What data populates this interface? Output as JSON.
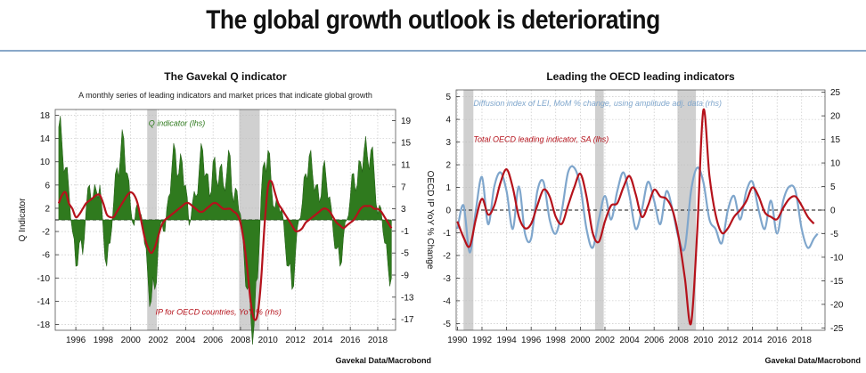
{
  "main_title": "The global growth outlook is deteriorating",
  "colors": {
    "green": "#2f7a1e",
    "red": "#b5121b",
    "blue": "#7fa6cc",
    "recession": "#d0d0d0"
  },
  "chart_data": [
    {
      "type": "area",
      "title": "The Gavekal Q indicator",
      "subtitle": "A monthly series of leading indicators and market prices that indicate global growth",
      "ylabel_left": "Q Indicator",
      "ylabel_right": "OECD IP YoY % Change",
      "source": "Gavekal Data/Macrobond",
      "xlim": [
        1994.5,
        2019.3
      ],
      "ylim_left": [
        -19,
        19
      ],
      "ylim_right": [
        -19,
        21
      ],
      "x_ticks": [
        1996,
        1998,
        2000,
        2002,
        2004,
        2006,
        2008,
        2010,
        2012,
        2014,
        2016,
        2018
      ],
      "y_ticks_left": [
        18,
        14,
        10,
        6,
        2,
        -2,
        -6,
        -10,
        -14,
        -18
      ],
      "y_ticks_right": [
        19,
        15,
        11,
        7,
        3,
        -1,
        -5,
        -9,
        -13,
        -17
      ],
      "recession_bands": [
        [
          2001.2,
          2001.9
        ],
        [
          2007.9,
          2009.4
        ]
      ],
      "annotations": [
        "Q indicator (lhs)",
        "IP for OECD countries, YoY % (rhs)"
      ],
      "series": [
        {
          "name": "Q indicator (lhs)",
          "axis": "left",
          "x": [
            1994.75,
            1995.0,
            1995.25,
            1995.5,
            1995.75,
            1996.0,
            1996.25,
            1996.5,
            1996.75,
            1997.0,
            1997.25,
            1997.5,
            1997.75,
            1998.0,
            1998.25,
            1998.5,
            1998.75,
            1999.0,
            1999.25,
            1999.5,
            1999.75,
            2000.0,
            2000.25,
            2000.5,
            2000.75,
            2001.0,
            2001.25,
            2001.5,
            2001.75,
            2002.0,
            2002.25,
            2002.5,
            2002.75,
            2003.0,
            2003.25,
            2003.5,
            2003.75,
            2004.0,
            2004.25,
            2004.5,
            2004.75,
            2005.0,
            2005.25,
            2005.5,
            2005.75,
            2006.0,
            2006.25,
            2006.5,
            2006.75,
            2007.0,
            2007.25,
            2007.5,
            2007.75,
            2008.0,
            2008.25,
            2008.5,
            2008.75,
            2009.0,
            2009.25,
            2009.5,
            2009.75,
            2010.0,
            2010.25,
            2010.5,
            2010.75,
            2011.0,
            2011.25,
            2011.5,
            2011.75,
            2012.0,
            2012.25,
            2012.5,
            2012.75,
            2013.0,
            2013.25,
            2013.5,
            2013.75,
            2014.0,
            2014.25,
            2014.5,
            2014.75,
            2015.0,
            2015.25,
            2015.5,
            2015.75,
            2016.0,
            2016.25,
            2016.5,
            2016.75,
            2017.0,
            2017.25,
            2017.5,
            2017.75,
            2018.0,
            2018.25,
            2018.5,
            2018.75,
            2019.0
          ],
          "values": [
            16,
            13,
            9,
            5,
            -2,
            -8,
            -4,
            -6,
            2,
            6,
            4,
            5,
            6,
            -2,
            -8,
            -4,
            3,
            9,
            11,
            14,
            8,
            2,
            -1,
            3,
            1,
            -4,
            -10,
            -14,
            -12,
            -5,
            0,
            -2,
            4,
            9,
            12,
            8,
            10,
            6,
            -1,
            3,
            4,
            9,
            12,
            8,
            4,
            10,
            7,
            9,
            6,
            8,
            11,
            3,
            5,
            1,
            -6,
            -12,
            -17,
            -18,
            -10,
            4,
            10,
            12,
            6,
            2,
            3,
            2,
            -4,
            -8,
            -12,
            -6,
            0,
            3,
            8,
            11,
            8,
            6,
            3,
            9,
            7,
            4,
            -2,
            -5,
            -8,
            -3,
            0,
            4,
            8,
            6,
            10,
            12,
            11,
            12,
            8,
            1,
            2,
            -4,
            -8,
            -10
          ]
        },
        {
          "name": "IP for OECD countries, YoY % (rhs)",
          "axis": "right",
          "x": [
            1994.75,
            1995.0,
            1995.25,
            1995.5,
            1995.75,
            1996.0,
            1996.25,
            1996.5,
            1996.75,
            1997.0,
            1997.25,
            1997.5,
            1997.75,
            1998.0,
            1998.25,
            1998.5,
            1998.75,
            1999.0,
            1999.25,
            1999.5,
            1999.75,
            2000.0,
            2000.25,
            2000.5,
            2000.75,
            2001.0,
            2001.25,
            2001.5,
            2001.75,
            2002.0,
            2002.25,
            2002.5,
            2002.75,
            2003.0,
            2003.25,
            2003.5,
            2003.75,
            2004.0,
            2004.25,
            2004.5,
            2004.75,
            2005.0,
            2005.25,
            2005.5,
            2005.75,
            2006.0,
            2006.25,
            2006.5,
            2006.75,
            2007.0,
            2007.25,
            2007.5,
            2007.75,
            2008.0,
            2008.25,
            2008.5,
            2008.75,
            2009.0,
            2009.25,
            2009.5,
            2009.75,
            2010.0,
            2010.25,
            2010.5,
            2010.75,
            2011.0,
            2011.25,
            2011.5,
            2011.75,
            2012.0,
            2012.25,
            2012.5,
            2012.75,
            2013.0,
            2013.25,
            2013.5,
            2013.75,
            2014.0,
            2014.25,
            2014.5,
            2014.75,
            2015.0,
            2015.25,
            2015.5,
            2015.75,
            2016.0,
            2016.25,
            2016.5,
            2016.75,
            2017.0,
            2017.25,
            2017.5,
            2017.75,
            2018.0,
            2018.25,
            2018.5,
            2018.75,
            2019.0
          ],
          "values": [
            4,
            5.5,
            6,
            4,
            3,
            1.5,
            2,
            3,
            4,
            4.5,
            5,
            5.5,
            5.5,
            4,
            2,
            1.5,
            1.5,
            2.5,
            3.5,
            4.5,
            5.5,
            6,
            5.5,
            4,
            1,
            -2,
            -4,
            -5,
            -4,
            -2,
            0,
            1,
            1.5,
            2,
            2.5,
            3,
            3.5,
            4,
            4,
            3.5,
            3,
            2.5,
            2.5,
            3,
            3.5,
            4,
            4,
            3.5,
            3,
            3,
            3,
            2.5,
            2,
            0.5,
            -3,
            -8,
            -14,
            -17,
            -16,
            -10,
            0,
            7,
            8,
            6,
            4,
            3,
            2,
            1,
            0,
            -1,
            -1,
            -0.5,
            0.5,
            1,
            1.5,
            2,
            2.5,
            3,
            3,
            2.5,
            1.5,
            0.5,
            0,
            -0.5,
            0,
            0.5,
            1,
            2,
            3,
            3.5,
            3.5,
            3.5,
            3,
            3,
            2.5,
            1.5,
            0.5,
            -0.5
          ]
        }
      ]
    },
    {
      "type": "line",
      "title": "Leading the OECD leading indicators",
      "source": "Gavekal Data/Macrobond",
      "xlim": [
        1989.9,
        2019.9
      ],
      "ylim_left": [
        -5.3,
        5.3
      ],
      "ylim_right": [
        -25.5,
        25.5
      ],
      "x_ticks": [
        1990,
        1992,
        1994,
        1996,
        1998,
        2000,
        2002,
        2004,
        2006,
        2008,
        2010,
        2012,
        2014,
        2016,
        2018
      ],
      "y_ticks_left": [
        5,
        4,
        3,
        2,
        1,
        0,
        -1,
        -2,
        -3,
        -4,
        -5
      ],
      "y_ticks_right": [
        25,
        20,
        15,
        10,
        5,
        0,
        -5,
        -10,
        -15,
        -20,
        -25
      ],
      "recession_bands": [
        [
          1990.5,
          1991.3
        ],
        [
          2001.2,
          2001.9
        ],
        [
          2007.9,
          2009.4
        ]
      ],
      "annotations": [
        "Diffusion index of LEI, MoM % change, using amplitude adj. data (rhs)",
        "Total OECD leading indicator, SA (lhs)"
      ],
      "series": [
        {
          "name": "Diffusion index of LEI, MoM % change, using amplitude adj. data (rhs)",
          "axis": "right",
          "x": [
            1990.0,
            1990.5,
            1991.0,
            1991.5,
            1992.0,
            1992.5,
            1993.0,
            1993.5,
            1994.0,
            1994.5,
            1995.0,
            1995.5,
            1996.0,
            1996.5,
            1997.0,
            1997.5,
            1998.0,
            1998.5,
            1999.0,
            1999.5,
            2000.0,
            2000.5,
            2001.0,
            2001.5,
            2002.0,
            2002.5,
            2003.0,
            2003.5,
            2004.0,
            2004.5,
            2005.0,
            2005.5,
            2006.0,
            2006.5,
            2007.0,
            2007.5,
            2008.0,
            2008.5,
            2009.0,
            2009.5,
            2010.0,
            2010.5,
            2011.0,
            2011.5,
            2012.0,
            2012.5,
            2013.0,
            2013.5,
            2014.0,
            2014.5,
            2015.0,
            2015.5,
            2016.0,
            2016.5,
            2017.0,
            2017.5,
            2018.0,
            2018.5,
            2019.0,
            2019.3
          ],
          "values": [
            -4,
            1,
            -9,
            0,
            7,
            -3,
            5,
            8,
            4,
            -4,
            5,
            -5,
            -6,
            4,
            6,
            -2,
            -5,
            0,
            8,
            9,
            5,
            -4,
            -8,
            -2,
            3,
            -2,
            4,
            8,
            3,
            -4,
            0,
            6,
            2,
            -3,
            4,
            0,
            -6,
            -8,
            4,
            9,
            6,
            -2,
            -4,
            -7,
            0,
            3,
            -2,
            4,
            6,
            0,
            -4,
            2,
            -5,
            2,
            5,
            4,
            -4,
            -8,
            -6,
            -5
          ]
        },
        {
          "name": "Total OECD leading indicator, SA (lhs)",
          "axis": "left",
          "x": [
            1990.0,
            1990.5,
            1991.0,
            1991.5,
            1992.0,
            1992.5,
            1993.0,
            1993.5,
            1994.0,
            1994.5,
            1995.0,
            1995.5,
            1996.0,
            1996.5,
            1997.0,
            1997.5,
            1998.0,
            1998.5,
            1999.0,
            1999.5,
            2000.0,
            2000.5,
            2001.0,
            2001.5,
            2002.0,
            2002.5,
            2003.0,
            2003.5,
            2004.0,
            2004.5,
            2005.0,
            2005.5,
            2006.0,
            2006.5,
            2007.0,
            2007.5,
            2008.0,
            2008.5,
            2009.0,
            2009.5,
            2010.0,
            2010.5,
            2011.0,
            2011.5,
            2012.0,
            2012.5,
            2013.0,
            2013.5,
            2014.0,
            2014.5,
            2015.0,
            2015.5,
            2016.0,
            2016.5,
            2017.0,
            2017.5,
            2018.0,
            2018.5,
            2019.0
          ],
          "values": [
            -0.5,
            -1.2,
            -1.6,
            -0.4,
            0.5,
            -0.2,
            0.2,
            1.2,
            1.8,
            1.0,
            -0.3,
            -0.8,
            -0.6,
            0.2,
            0.9,
            0.6,
            -0.3,
            -0.6,
            0.2,
            1.0,
            1.6,
            0.6,
            -1.0,
            -1.4,
            -0.5,
            0.2,
            0.3,
            1.0,
            1.5,
            0.7,
            -0.3,
            0.2,
            0.9,
            0.6,
            0.5,
            0.0,
            -1.2,
            -3.0,
            -5.0,
            -1.0,
            4.4,
            1.5,
            -0.2,
            -1.0,
            -0.8,
            -0.3,
            0.0,
            0.4,
            1.0,
            0.6,
            -0.1,
            -0.3,
            -0.4,
            0.1,
            0.5,
            0.6,
            0.2,
            -0.3,
            -0.6
          ]
        }
      ]
    }
  ]
}
